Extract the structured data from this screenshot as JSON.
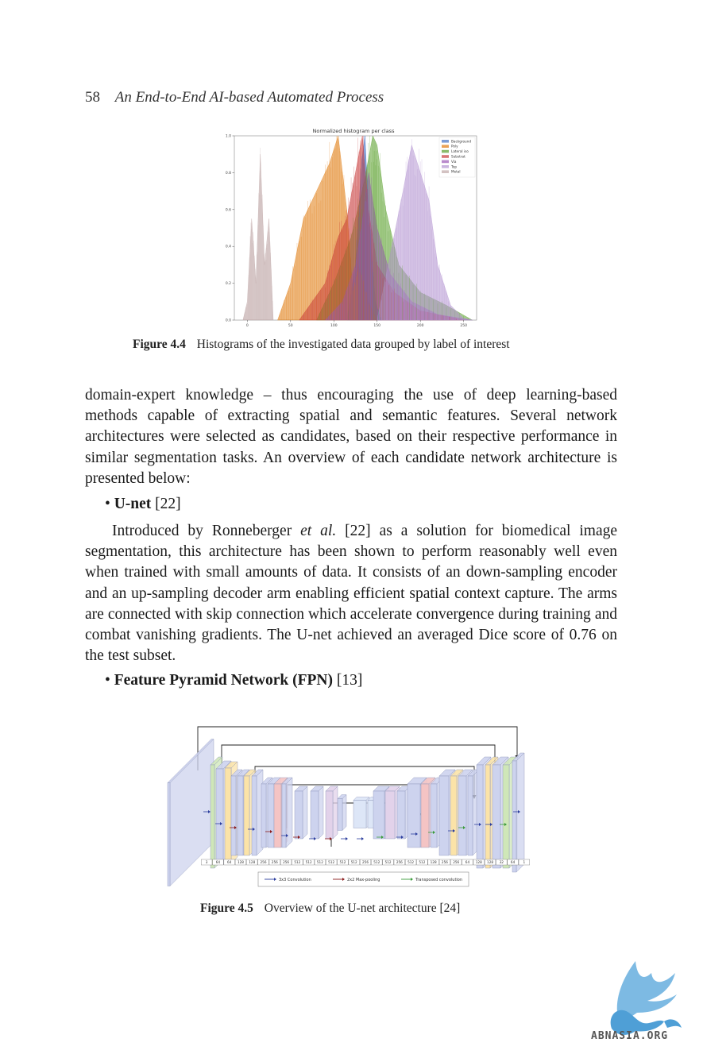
{
  "header": {
    "page_number": "58",
    "running_title": "An End-to-End AI-based Automated Process"
  },
  "figure_4_4": {
    "label": "Figure 4.4",
    "caption": "Histograms of the investigated data grouped by label of interest",
    "chart_data": {
      "type": "area",
      "title": "Normalized histogram per class",
      "xlabel": "",
      "ylabel": "",
      "xlim": [
        -15,
        265
      ],
      "ylim": [
        0,
        1.0
      ],
      "x_ticks": [
        0,
        50,
        100,
        150,
        200,
        250
      ],
      "y_ticks": [
        0.0,
        0.2,
        0.4,
        0.6,
        0.8,
        1.0
      ],
      "legend_position": "top-right",
      "series": [
        {
          "name": "Background",
          "color": "#4472c4",
          "x": [
            115,
            125,
            132,
            136,
            140,
            148,
            155
          ],
          "values": [
            0.0,
            0.3,
            0.85,
            1.0,
            0.6,
            0.1,
            0.0
          ]
        },
        {
          "name": "Poly",
          "color": "#e07b10",
          "x": [
            35,
            50,
            65,
            80,
            95,
            105,
            115,
            122,
            128,
            140,
            150
          ],
          "values": [
            0.0,
            0.2,
            0.55,
            0.7,
            0.85,
            1.0,
            0.6,
            0.15,
            0.3,
            0.1,
            0.0
          ]
        },
        {
          "name": "Lateral iso",
          "color": "#5aa02c",
          "x": [
            80,
            100,
            120,
            135,
            145,
            150,
            160,
            175,
            200,
            230,
            260
          ],
          "values": [
            0.0,
            0.2,
            0.45,
            0.75,
            1.0,
            0.95,
            0.6,
            0.3,
            0.15,
            0.08,
            0.0
          ]
        },
        {
          "name": "Substrat",
          "color": "#c83c3c",
          "x": [
            60,
            90,
            105,
            115,
            125,
            133,
            140,
            150,
            170,
            200,
            250
          ],
          "values": [
            0.0,
            0.2,
            0.45,
            0.55,
            0.8,
            1.0,
            0.6,
            0.3,
            0.15,
            0.05,
            0.0
          ]
        },
        {
          "name": "Via",
          "color": "#9b59b6",
          "x": [
            90,
            110,
            125,
            135,
            140,
            150,
            165,
            190,
            220,
            260
          ],
          "values": [
            0.0,
            0.1,
            0.3,
            0.6,
            0.8,
            0.5,
            0.25,
            0.1,
            0.03,
            0.0
          ]
        },
        {
          "name": "Top",
          "color": "#b495d2",
          "x": [
            150,
            165,
            180,
            190,
            200,
            210,
            220,
            235,
            250,
            260
          ],
          "values": [
            0.0,
            0.35,
            0.7,
            0.95,
            0.8,
            0.65,
            0.3,
            0.08,
            0.01,
            0.0
          ]
        },
        {
          "name": "Metal",
          "color": "#c0a8a8",
          "x": [
            -5,
            0,
            5,
            10,
            15,
            20,
            25,
            30
          ],
          "values": [
            0.0,
            0.1,
            0.55,
            0.2,
            0.9,
            0.3,
            0.55,
            0.0
          ]
        }
      ]
    }
  },
  "body": {
    "paragraph_1": "domain-expert knowledge – thus encouraging the use of deep learning-based methods capable of extracting spatial and semantic features. Several network architectures were selected as candidates, based on their respective performance in similar segmentation tasks. An overview of each candidate network architecture is presented below:",
    "bullet_1": {
      "bullet": "•",
      "term": "U-net",
      "ref": "[22]"
    },
    "paragraph_2_before": "Introduced by Ronneberger ",
    "paragraph_2_italic": "et al.",
    "paragraph_2_after": " [22] as a solution for biomedical image segmentation, this architecture has been shown to perform reasonably well even when trained with small amounts of data. It consists of an down-sampling encoder and an up-sampling decoder arm enabling efficient spatial context capture. The arms are connected with skip connection which accelerate convergence during training and combat vanishing gradients. The U-net achieved an averaged Dice score of 0.76 on the test subset.",
    "bullet_2": {
      "bullet": "•",
      "term": "Feature Pyramid Network (FPN)",
      "ref": "[13]"
    }
  },
  "figure_4_5": {
    "label": "Figure 4.5",
    "caption": "Overview of the U-net architecture [24]",
    "channel_labels": [
      "3",
      "64",
      "64",
      "128",
      "128",
      "256",
      "256",
      "256",
      "512",
      "512",
      "512",
      "512",
      "512",
      "512",
      "256",
      "512",
      "512",
      "256",
      "512",
      "512",
      "128",
      "256",
      "256",
      "64",
      "128",
      "128",
      "32",
      "64",
      "1"
    ],
    "legend": [
      "3x3 Convolution",
      "2x2 Max-pooling",
      "Transposed convolution"
    ],
    "colors": {
      "conv": "#2c3e9e",
      "pool": "#8b1a1a",
      "transposed": "#3a9a3a"
    }
  },
  "watermark": {
    "text": "ABNASIA.ORG"
  }
}
